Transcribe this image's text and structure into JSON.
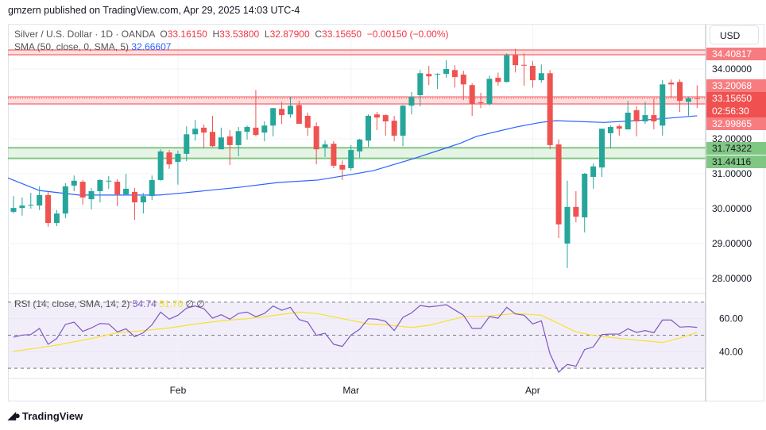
{
  "header": {
    "published": "gmzern published on TradingView.com, Apr 29, 2025 14:03 UTC-4"
  },
  "legend": {
    "symbol": "Silver / U.S. Dollar · 1D · OANDA",
    "o_label": "O",
    "o": "33.16150",
    "h_label": "H",
    "h": "33.53800",
    "l_label": "L",
    "l": "32.87900",
    "c_label": "C",
    "c": "33.15650",
    "change": "−0.00150 (−0.00%)",
    "sma_label": "SMA (50, close, 0, SMA, 5)",
    "sma_value": "32.66607"
  },
  "rsi_legend": {
    "label": "RSI (14, close, SMA, 14, 2)",
    "rsi": "54.74",
    "sma": "51.70",
    "extra": "∅ ∅"
  },
  "price_axis": {
    "currency": "USD",
    "ticks": [
      "34.00000",
      "33.00000",
      "32.00000",
      "31.00000",
      "30.00000",
      "29.00000",
      "28.00000"
    ],
    "tick_values": [
      34,
      33,
      32,
      31,
      30,
      29,
      28
    ],
    "labels": [
      {
        "text": "34.40817",
        "value": 34.40817,
        "kind": "resistance"
      },
      {
        "text": "33.20068",
        "value": 33.20068,
        "kind": "resistance"
      },
      {
        "text": "33.15650",
        "sub": "02:56:30",
        "value": 33.1565,
        "kind": "last"
      },
      {
        "text": "32.99865",
        "value": 32.99865,
        "kind": "resistance"
      },
      {
        "text": "31.74322",
        "value": 31.74322,
        "kind": "support"
      },
      {
        "text": "31.44116",
        "value": 31.44116,
        "kind": "support"
      }
    ]
  },
  "rsi_axis": {
    "ticks": [
      "60.00",
      "40.00"
    ],
    "tick_values": [
      60,
      40
    ]
  },
  "time_axis": {
    "labels": [
      {
        "text": "Feb",
        "index": 20
      },
      {
        "text": "Mar",
        "index": 40
      },
      {
        "text": "Apr",
        "index": 61
      }
    ]
  },
  "footer": {
    "brand": "TradingView"
  },
  "colors": {
    "up": "#26a69a",
    "down": "#ef5350",
    "sma": "#2962ff",
    "rsi": "#7e57c2",
    "rsi_sma": "#f7e22a",
    "resistance": "#f77c80",
    "support": "#81c784",
    "last": "#f0504f"
  },
  "chart_data": {
    "type": "candlestick",
    "title": "Silver / U.S. Dollar · 1D · OANDA",
    "ylim": [
      27.6,
      35.2
    ],
    "ohlc": [
      [
        29.91,
        30.36,
        29.86,
        30.02
      ],
      [
        30.02,
        30.32,
        29.8,
        30.09
      ],
      [
        30.09,
        30.45,
        30.0,
        30.11
      ],
      [
        30.09,
        30.64,
        29.96,
        30.39
      ],
      [
        30.39,
        30.48,
        29.48,
        29.59
      ],
      [
        29.59,
        29.96,
        29.5,
        29.86
      ],
      [
        29.86,
        30.73,
        29.73,
        30.64
      ],
      [
        30.66,
        30.95,
        30.5,
        30.8
      ],
      [
        30.77,
        30.82,
        30.11,
        30.32
      ],
      [
        30.27,
        30.59,
        29.98,
        30.5
      ],
      [
        30.5,
        30.84,
        30.18,
        30.82
      ],
      [
        30.79,
        30.93,
        30.57,
        30.8
      ],
      [
        30.77,
        30.84,
        30.07,
        30.41
      ],
      [
        30.41,
        31.0,
        30.41,
        30.57
      ],
      [
        30.48,
        30.59,
        29.68,
        30.18
      ],
      [
        30.18,
        30.45,
        29.86,
        30.36
      ],
      [
        30.36,
        30.95,
        30.25,
        30.82
      ],
      [
        30.82,
        31.7,
        30.8,
        31.64
      ],
      [
        31.61,
        31.68,
        31.14,
        31.27
      ],
      [
        31.34,
        31.66,
        30.69,
        31.57
      ],
      [
        31.57,
        32.36,
        31.36,
        32.13
      ],
      [
        32.13,
        32.54,
        31.95,
        32.29
      ],
      [
        32.32,
        32.41,
        31.73,
        32.18
      ],
      [
        32.2,
        32.66,
        31.77,
        31.79
      ],
      [
        31.7,
        32.32,
        31.7,
        32.04
      ],
      [
        32.07,
        32.25,
        31.25,
        31.82
      ],
      [
        31.82,
        32.34,
        31.5,
        32.22
      ],
      [
        32.2,
        32.38,
        31.98,
        32.34
      ],
      [
        32.32,
        33.4,
        32.07,
        32.11
      ],
      [
        32.18,
        32.5,
        31.93,
        32.38
      ],
      [
        32.38,
        32.88,
        32.07,
        32.88
      ],
      [
        32.86,
        33.06,
        32.43,
        32.68
      ],
      [
        32.7,
        33.2,
        32.61,
        32.95
      ],
      [
        32.97,
        33.09,
        32.43,
        32.43
      ],
      [
        32.66,
        32.75,
        32.09,
        32.32
      ],
      [
        32.36,
        32.47,
        31.27,
        31.7
      ],
      [
        31.75,
        31.95,
        31.48,
        31.84
      ],
      [
        31.86,
        31.93,
        31.16,
        31.23
      ],
      [
        31.25,
        31.38,
        30.82,
        31.12
      ],
      [
        31.16,
        31.82,
        31.09,
        31.68
      ],
      [
        31.64,
        32.0,
        31.46,
        31.98
      ],
      [
        31.95,
        32.7,
        31.77,
        32.66
      ],
      [
        32.7,
        32.77,
        32.25,
        32.61
      ],
      [
        32.68,
        32.7,
        32.09,
        32.5
      ],
      [
        32.52,
        32.66,
        31.93,
        32.09
      ],
      [
        32.09,
        32.97,
        31.79,
        32.95
      ],
      [
        32.95,
        33.34,
        32.7,
        33.2
      ],
      [
        33.25,
        33.97,
        32.93,
        33.88
      ],
      [
        33.86,
        34.09,
        33.54,
        33.79
      ],
      [
        33.85,
        33.88,
        33.43,
        33.86
      ],
      [
        33.86,
        34.25,
        33.75,
        34.0
      ],
      [
        33.97,
        34.11,
        33.47,
        33.77
      ],
      [
        33.84,
        33.95,
        33.11,
        33.56
      ],
      [
        33.54,
        33.59,
        32.66,
        33.0
      ],
      [
        33.05,
        33.32,
        32.88,
        33.02
      ],
      [
        33.0,
        33.81,
        32.95,
        33.72
      ],
      [
        33.75,
        33.9,
        33.52,
        33.63
      ],
      [
        33.63,
        34.45,
        33.61,
        34.4
      ],
      [
        34.4,
        34.58,
        33.9,
        34.11
      ],
      [
        34.12,
        34.45,
        33.52,
        34.1
      ],
      [
        34.09,
        34.23,
        33.47,
        33.68
      ],
      [
        33.68,
        34.13,
        33.61,
        33.88
      ],
      [
        33.88,
        33.97,
        31.7,
        31.82
      ],
      [
        31.84,
        31.98,
        29.16,
        29.55
      ],
      [
        29.0,
        30.8,
        28.3,
        30.05
      ],
      [
        30.05,
        30.5,
        29.61,
        29.77
      ],
      [
        29.75,
        31.02,
        29.32,
        31.0
      ],
      [
        30.91,
        31.29,
        30.57,
        31.21
      ],
      [
        31.18,
        32.29,
        30.91,
        32.29
      ],
      [
        32.16,
        32.38,
        31.73,
        32.34
      ],
      [
        32.36,
        32.41,
        32.09,
        32.29
      ],
      [
        32.27,
        33.09,
        32.27,
        32.75
      ],
      [
        32.82,
        32.93,
        32.07,
        32.5
      ],
      [
        32.5,
        33.06,
        32.43,
        32.68
      ],
      [
        32.68,
        33.16,
        32.27,
        32.5
      ],
      [
        32.38,
        33.68,
        32.09,
        33.56
      ],
      [
        33.61,
        33.7,
        33.18,
        33.56
      ],
      [
        33.63,
        33.7,
        32.77,
        33.09
      ],
      [
        33.06,
        33.2,
        32.66,
        33.16
      ],
      [
        33.1615,
        33.538,
        32.879,
        33.1565
      ]
    ],
    "sma50": [
      [
        0.36,
        30.88
      ],
      [
        4.0,
        30.52
      ],
      [
        8.6,
        30.39
      ],
      [
        17.8,
        30.39
      ],
      [
        20.6,
        30.45
      ],
      [
        27,
        30.61
      ],
      [
        31.6,
        30.75
      ],
      [
        36.2,
        30.82
      ],
      [
        38.9,
        30.93
      ],
      [
        42.6,
        31.09
      ],
      [
        47.2,
        31.43
      ],
      [
        50.9,
        31.73
      ],
      [
        52.7,
        31.88
      ],
      [
        54.5,
        32.07
      ],
      [
        59.1,
        32.34
      ],
      [
        61.9,
        32.47
      ],
      [
        63.7,
        32.52
      ],
      [
        69.2,
        32.47
      ],
      [
        72.9,
        32.52
      ],
      [
        76.6,
        32.59
      ],
      [
        80,
        32.66
      ]
    ],
    "levels": [
      34.40817,
      33.20068,
      32.99865,
      31.74322,
      31.44116
    ],
    "last_price": 33.1565,
    "rsi": {
      "ylim": [
        30,
        70
      ],
      "bands": [
        70,
        50,
        30
      ],
      "values": [
        48.8,
        50.1,
        50.4,
        54.1,
        44.5,
        48.0,
        56.5,
        57.9,
        52.3,
        54.4,
        57.1,
        56.8,
        52.0,
        53.9,
        49.1,
        51.5,
        56.3,
        64.0,
        59.7,
        62.1,
        66.4,
        67.7,
        66.1,
        60.3,
        62.4,
        59.7,
        63.2,
        64.0,
        61.2,
        63.2,
        67.7,
        65.1,
        66.9,
        59.5,
        57.9,
        49.9,
        51.2,
        44.5,
        43.2,
        50.1,
        53.6,
        60.0,
        59.7,
        58.4,
        52.8,
        60.8,
        63.5,
        68.0,
        67.2,
        67.7,
        68.5,
        65.3,
        62.1,
        54.1,
        54.1,
        61.3,
        60.3,
        66.9,
        62.9,
        62.1,
        56.8,
        58.7,
        38.7,
        27.6,
        32.3,
        31.2,
        41.3,
        42.9,
        50.4,
        50.7,
        50.7,
        53.9,
        51.7,
        52.8,
        51.5,
        59.2,
        59.2,
        54.9,
        55.2,
        54.74
      ],
      "sma": [
        [
          1,
          40.3
        ],
        [
          4,
          42.4
        ],
        [
          6,
          44.0
        ],
        [
          10,
          48.0
        ],
        [
          13,
          51.5
        ],
        [
          16,
          52.8
        ],
        [
          19,
          54.4
        ],
        [
          22,
          56.8
        ],
        [
          25,
          58.7
        ],
        [
          28,
          60.0
        ],
        [
          31,
          61.9
        ],
        [
          34,
          64.0
        ],
        [
          36,
          63.2
        ],
        [
          39,
          60.0
        ],
        [
          41,
          57.9
        ],
        [
          42,
          56.8
        ],
        [
          44,
          56.3
        ],
        [
          47,
          54.7
        ],
        [
          49,
          56.0
        ],
        [
          53,
          61.2
        ],
        [
          56,
          61.6
        ],
        [
          59,
          63.2
        ],
        [
          62,
          62.1
        ],
        [
          66,
          52.0
        ],
        [
          68,
          49.9
        ],
        [
          72,
          47.5
        ],
        [
          76,
          45.6
        ],
        [
          78,
          48.3
        ],
        [
          80,
          51.7
        ]
      ]
    }
  }
}
